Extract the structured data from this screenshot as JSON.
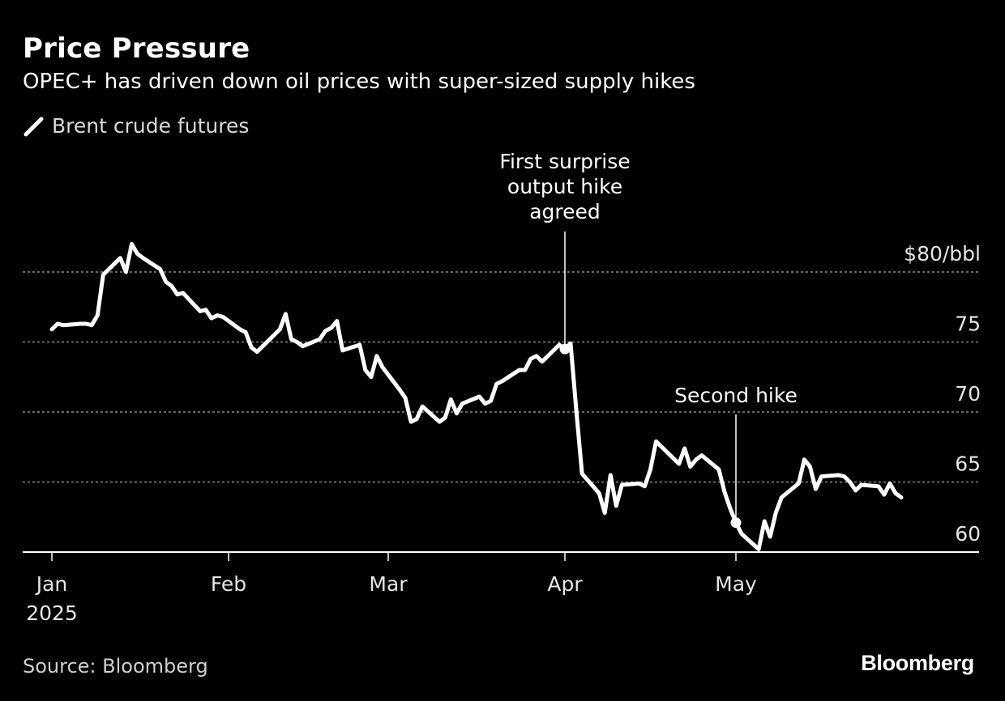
{
  "header": {
    "title": "Price Pressure",
    "subtitle": "OPEC+ has driven down oil prices with super-sized supply hikes"
  },
  "legend": {
    "label": "Brent crude futures",
    "color": "#ffffff"
  },
  "footer": {
    "source": "Source: Bloomberg",
    "brand": "Bloomberg"
  },
  "colors": {
    "background": "#000000",
    "line": "#ffffff",
    "grid": "#8a8a8a",
    "axis": "#ffffff"
  },
  "chart_data": {
    "type": "line",
    "x_axis": {
      "type": "date",
      "range": [
        "2024-12-29",
        "2025-06-14"
      ],
      "ticks": [
        {
          "date": "2025-01-01",
          "label": "Jan",
          "sublabel": "2025"
        },
        {
          "date": "2025-02-01",
          "label": "Feb",
          "sublabel": ""
        },
        {
          "date": "2025-03-01",
          "label": "Mar",
          "sublabel": ""
        },
        {
          "date": "2025-04-01",
          "label": "Apr",
          "sublabel": ""
        },
        {
          "date": "2025-05-01",
          "label": "May",
          "sublabel": ""
        }
      ]
    },
    "y_axis": {
      "range": [
        60,
        80.5
      ],
      "unit_label": "$80/bbl",
      "ticks": [
        {
          "value": 60,
          "label": "60"
        },
        {
          "value": 65,
          "label": "65"
        },
        {
          "value": 70,
          "label": "70"
        },
        {
          "value": 75,
          "label": "75"
        },
        {
          "value": 80,
          "label": "$80/bbl"
        }
      ],
      "grid": true
    },
    "series": [
      {
        "name": "Brent crude futures",
        "points": [
          [
            "2025-01-01",
            75.9
          ],
          [
            "2025-01-02",
            76.3
          ],
          [
            "2025-01-03",
            76.2
          ],
          [
            "2025-01-06",
            76.3
          ],
          [
            "2025-01-07",
            76.3
          ],
          [
            "2025-01-08",
            76.2
          ],
          [
            "2025-01-09",
            76.9
          ],
          [
            "2025-01-10",
            79.8
          ],
          [
            "2025-01-13",
            81.0
          ],
          [
            "2025-01-14",
            80.0
          ],
          [
            "2025-01-15",
            82.0
          ],
          [
            "2025-01-16",
            81.3
          ],
          [
            "2025-01-17",
            81.0
          ],
          [
            "2025-01-20",
            80.2
          ],
          [
            "2025-01-21",
            79.3
          ],
          [
            "2025-01-22",
            79.0
          ],
          [
            "2025-01-23",
            78.4
          ],
          [
            "2025-01-24",
            78.5
          ],
          [
            "2025-01-27",
            77.2
          ],
          [
            "2025-01-28",
            77.3
          ],
          [
            "2025-01-29",
            76.7
          ],
          [
            "2025-01-30",
            76.9
          ],
          [
            "2025-01-31",
            76.8
          ],
          [
            "2025-02-03",
            75.9
          ],
          [
            "2025-02-04",
            75.7
          ],
          [
            "2025-02-05",
            74.6
          ],
          [
            "2025-02-06",
            74.3
          ],
          [
            "2025-02-07",
            74.7
          ],
          [
            "2025-02-10",
            75.9
          ],
          [
            "2025-02-11",
            77.0
          ],
          [
            "2025-02-12",
            75.2
          ],
          [
            "2025-02-13",
            75.0
          ],
          [
            "2025-02-14",
            74.7
          ],
          [
            "2025-02-17",
            75.2
          ],
          [
            "2025-02-18",
            75.8
          ],
          [
            "2025-02-19",
            76.0
          ],
          [
            "2025-02-20",
            76.5
          ],
          [
            "2025-02-21",
            74.4
          ],
          [
            "2025-02-24",
            74.8
          ],
          [
            "2025-02-25",
            73.0
          ],
          [
            "2025-02-26",
            72.5
          ],
          [
            "2025-02-27",
            74.0
          ],
          [
            "2025-02-28",
            73.2
          ],
          [
            "2025-03-03",
            71.6
          ],
          [
            "2025-03-04",
            71.0
          ],
          [
            "2025-03-05",
            69.3
          ],
          [
            "2025-03-06",
            69.5
          ],
          [
            "2025-03-07",
            70.4
          ],
          [
            "2025-03-10",
            69.3
          ],
          [
            "2025-03-11",
            69.6
          ],
          [
            "2025-03-12",
            70.9
          ],
          [
            "2025-03-13",
            69.9
          ],
          [
            "2025-03-14",
            70.6
          ],
          [
            "2025-03-17",
            71.1
          ],
          [
            "2025-03-18",
            70.6
          ],
          [
            "2025-03-19",
            70.8
          ],
          [
            "2025-03-20",
            72.0
          ],
          [
            "2025-03-21",
            72.2
          ],
          [
            "2025-03-24",
            73.0
          ],
          [
            "2025-03-25",
            73.0
          ],
          [
            "2025-03-26",
            73.8
          ],
          [
            "2025-03-27",
            74.0
          ],
          [
            "2025-03-28",
            73.6
          ],
          [
            "2025-03-31",
            74.8
          ],
          [
            "2025-04-01",
            74.5
          ],
          [
            "2025-04-02",
            74.9
          ],
          [
            "2025-04-03",
            70.1
          ],
          [
            "2025-04-04",
            65.6
          ],
          [
            "2025-04-07",
            64.2
          ],
          [
            "2025-04-08",
            62.8
          ],
          [
            "2025-04-09",
            65.5
          ],
          [
            "2025-04-10",
            63.3
          ],
          [
            "2025-04-11",
            64.8
          ],
          [
            "2025-04-14",
            64.9
          ],
          [
            "2025-04-15",
            64.7
          ],
          [
            "2025-04-16",
            65.9
          ],
          [
            "2025-04-17",
            67.9
          ],
          [
            "2025-04-21",
            66.3
          ],
          [
            "2025-04-22",
            67.4
          ],
          [
            "2025-04-23",
            66.1
          ],
          [
            "2025-04-24",
            66.6
          ],
          [
            "2025-04-25",
            66.9
          ],
          [
            "2025-04-28",
            65.9
          ],
          [
            "2025-04-29",
            64.3
          ],
          [
            "2025-04-30",
            63.1
          ],
          [
            "2025-05-01",
            62.1
          ],
          [
            "2025-05-02",
            61.3
          ],
          [
            "2025-05-05",
            60.2
          ],
          [
            "2025-05-06",
            62.2
          ],
          [
            "2025-05-07",
            61.1
          ],
          [
            "2025-05-08",
            62.8
          ],
          [
            "2025-05-09",
            63.9
          ],
          [
            "2025-05-12",
            64.9
          ],
          [
            "2025-05-13",
            66.6
          ],
          [
            "2025-05-14",
            66.1
          ],
          [
            "2025-05-15",
            64.5
          ],
          [
            "2025-05-16",
            65.4
          ],
          [
            "2025-05-19",
            65.5
          ],
          [
            "2025-05-20",
            65.4
          ],
          [
            "2025-05-21",
            65.0
          ],
          [
            "2025-05-22",
            64.4
          ],
          [
            "2025-05-23",
            64.8
          ],
          [
            "2025-05-26",
            64.7
          ],
          [
            "2025-05-27",
            64.1
          ],
          [
            "2025-05-28",
            64.9
          ],
          [
            "2025-05-29",
            64.2
          ],
          [
            "2025-05-30",
            63.9
          ]
        ]
      }
    ],
    "annotations": [
      {
        "date": "2025-04-01",
        "value": 74.5,
        "lines": [
          "First surprise",
          "output hike",
          "agreed"
        ]
      },
      {
        "date": "2025-05-01",
        "value": 62.1,
        "lines": [
          "Second hike"
        ]
      }
    ]
  }
}
